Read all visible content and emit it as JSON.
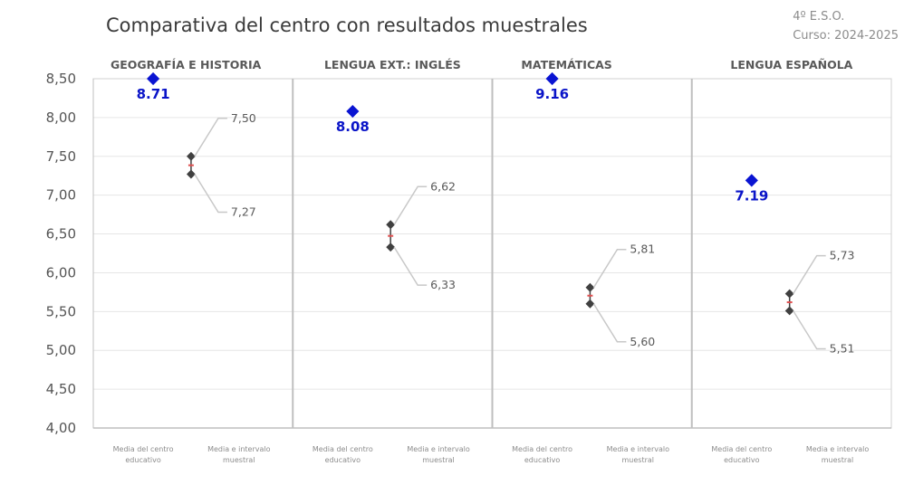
{
  "header": {
    "title": "Comparativa del centro con resultados muestrales",
    "grade": "4º E.S.O.",
    "course": "Curso: 2024-2025"
  },
  "chart_data": {
    "type": "scatter",
    "title": "Comparativa del centro con resultados muestrales",
    "ylim": [
      4.0,
      8.5
    ],
    "yticks": [
      "4,00",
      "4,50",
      "5,00",
      "5,50",
      "6,00",
      "6,50",
      "7,00",
      "7,50",
      "8,00",
      "8,50"
    ],
    "ytick_values": [
      4.0,
      4.5,
      5.0,
      5.5,
      6.0,
      6.5,
      7.0,
      7.5,
      8.0,
      8.5
    ],
    "x_categories": [
      "Media del centro educativo",
      "Media e intervalo muestral"
    ],
    "grid": true,
    "panels": [
      {
        "subject": "GEOGRAFÍA E HISTORIA",
        "centre_mean": 8.71,
        "centre_label": "8.71",
        "sample_high": 7.5,
        "sample_low": 7.27,
        "sample_mean": 7.385,
        "high_label": "7,50",
        "low_label": "7,27"
      },
      {
        "subject": "LENGUA EXT.: INGLÉS",
        "centre_mean": 8.08,
        "centre_label": "8.08",
        "sample_high": 6.62,
        "sample_low": 6.33,
        "sample_mean": 6.475,
        "high_label": "6,62",
        "low_label": "6,33"
      },
      {
        "subject": "MATEMÁTICAS",
        "centre_mean": 9.16,
        "centre_label": "9.16",
        "sample_high": 5.81,
        "sample_low": 5.6,
        "sample_mean": 5.705,
        "high_label": "5,81",
        "low_label": "5,60"
      },
      {
        "subject": "LENGUA ESPAÑOLA",
        "centre_mean": 7.19,
        "centre_label": "7.19",
        "sample_high": 5.73,
        "sample_low": 5.51,
        "sample_mean": 5.62,
        "high_label": "5,73",
        "low_label": "5,51"
      }
    ],
    "colors": {
      "centre_point": "#0a14d2",
      "centre_label": "#0a14c8",
      "interval": "#404040",
      "mean_tick": "#e05050",
      "leader": "#c8c8c8"
    }
  }
}
